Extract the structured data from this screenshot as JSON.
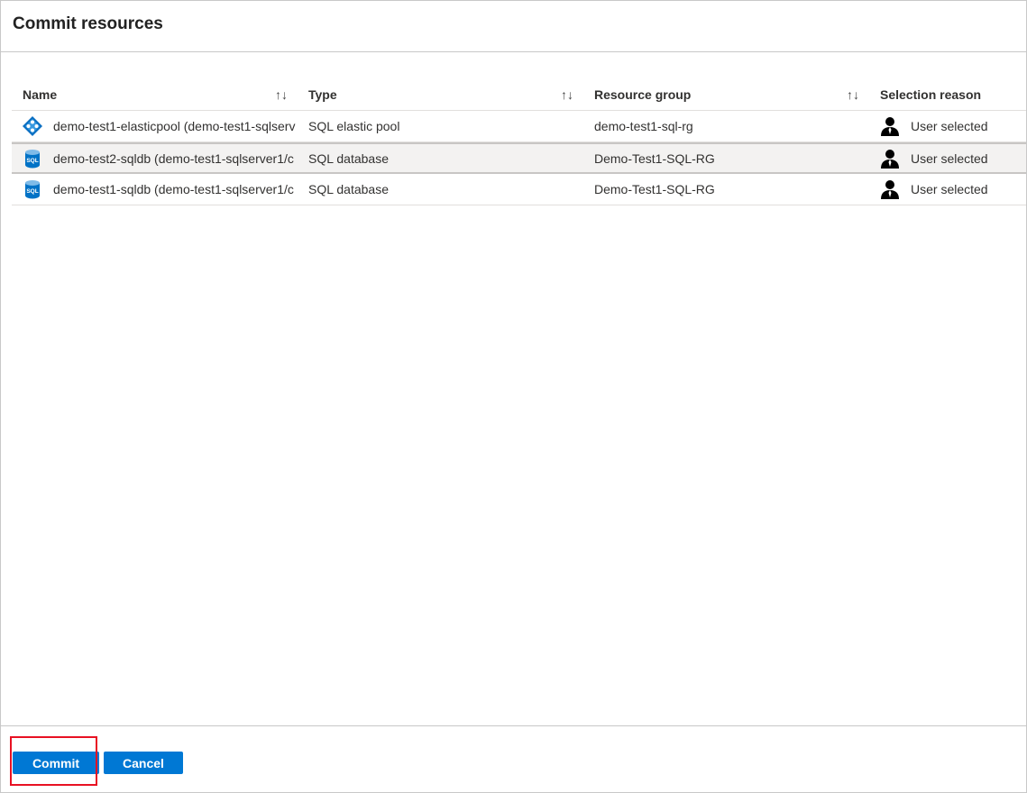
{
  "dialog": {
    "title": "Commit resources"
  },
  "table": {
    "columns": [
      "Name",
      "Type",
      "Resource group",
      "Selection reason"
    ],
    "rows": [
      {
        "icon": "elastic-pool-icon",
        "name": "demo-test1-elasticpool (demo-test1-sqlserv",
        "type": "SQL elastic pool",
        "group": "demo-test1-sql-rg",
        "reason": "User selected",
        "selected": false
      },
      {
        "icon": "sql-database-icon",
        "name": "demo-test2-sqldb (demo-test1-sqlserver1/c",
        "type": "SQL database",
        "group": "Demo-Test1-SQL-RG",
        "reason": "User selected",
        "selected": true
      },
      {
        "icon": "sql-database-icon",
        "name": "demo-test1-sqldb (demo-test1-sqlserver1/c",
        "type": "SQL database",
        "group": "Demo-Test1-SQL-RG",
        "reason": "User selected",
        "selected": false
      }
    ],
    "sort_glyph": "↑↓",
    "sql_icon_text": "SQL"
  },
  "footer": {
    "commit_label": "Commit",
    "cancel_label": "Cancel"
  },
  "colors": {
    "primary": "#0078d4",
    "highlight": "#e81123"
  }
}
